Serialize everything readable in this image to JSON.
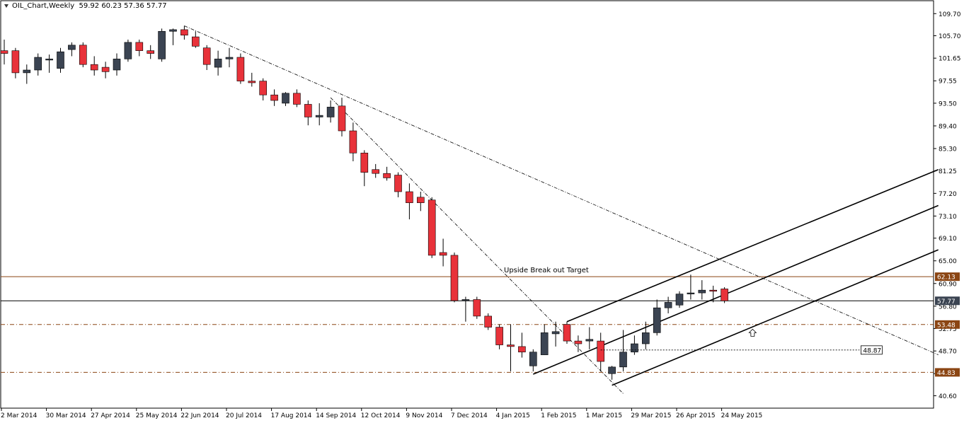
{
  "header": {
    "symbol": "OIL_Chart,Weekly",
    "ohlc": "59.92 60.23 57.36 57.77"
  },
  "colors": {
    "bull": "#3b4452",
    "bear": "#e8323a",
    "candle_outline": "#000000",
    "resistance": "#8b4513",
    "current_price_line": "#000000",
    "channel": "#000000",
    "trendline": "#000000",
    "current_badge_bg": "#3b4452",
    "level_badge_bg": "#8b4513",
    "badge_text": "#ffffff",
    "target_box_border": "#000000"
  },
  "chart_data": {
    "type": "candlestick",
    "instrument": "OIL",
    "timeframe": "Weekly",
    "y_axis": {
      "ylim": [
        39.0,
        110.5
      ],
      "tick_labels": [
        "109.70",
        "105.70",
        "101.65",
        "97.55",
        "93.50",
        "89.40",
        "85.30",
        "81.25",
        "77.20",
        "73.10",
        "69.10",
        "65.00",
        "60.90",
        "56.80",
        "52.75",
        "48.70",
        "44.60",
        "40.60"
      ]
    },
    "x_axis": {
      "tick_labels": [
        "2 Mar 2014",
        "30 Mar 2014",
        "27 Apr 2014",
        "25 May 2014",
        "22 Jun 2014",
        "20 Jul 2014",
        "17 Aug 2014",
        "14 Sep 2014",
        "12 Oct 2014",
        "9 Nov 2014",
        "7 Dec 2014",
        "4 Jan 2015",
        "1 Feb 2015",
        "1 Mar 2015",
        "29 Mar 2015",
        "26 Apr 2015",
        "24 May 2015"
      ],
      "tick_label_bar_index": [
        0,
        4,
        8,
        12,
        16,
        20,
        24,
        28,
        32,
        36,
        40,
        44,
        48,
        52,
        56,
        60,
        64
      ]
    },
    "candles": [
      {
        "o": 103.0,
        "h": 105.0,
        "l": 100.5,
        "c": 102.5
      },
      {
        "o": 103.0,
        "h": 103.5,
        "l": 98.0,
        "c": 99.0
      },
      {
        "o": 99.0,
        "h": 100.5,
        "l": 97.0,
        "c": 99.5
      },
      {
        "o": 99.5,
        "h": 102.5,
        "l": 98.5,
        "c": 101.8
      },
      {
        "o": 101.3,
        "h": 102.3,
        "l": 99.0,
        "c": 101.5
      },
      {
        "o": 99.8,
        "h": 103.5,
        "l": 99.0,
        "c": 102.8
      },
      {
        "o": 103.2,
        "h": 104.5,
        "l": 102.0,
        "c": 104.0
      },
      {
        "o": 104.0,
        "h": 104.5,
        "l": 100.0,
        "c": 100.5
      },
      {
        "o": 100.5,
        "h": 102.0,
        "l": 98.5,
        "c": 99.5
      },
      {
        "o": 100.0,
        "h": 101.0,
        "l": 98.0,
        "c": 99.2
      },
      {
        "o": 99.5,
        "h": 102.5,
        "l": 98.5,
        "c": 101.5
      },
      {
        "o": 101.5,
        "h": 105.0,
        "l": 101.0,
        "c": 104.5
      },
      {
        "o": 104.5,
        "h": 105.0,
        "l": 102.0,
        "c": 103.0
      },
      {
        "o": 103.0,
        "h": 104.0,
        "l": 101.5,
        "c": 102.5
      },
      {
        "o": 101.5,
        "h": 107.0,
        "l": 101.0,
        "c": 106.5
      },
      {
        "o": 106.5,
        "h": 107.0,
        "l": 104.0,
        "c": 106.8
      },
      {
        "o": 106.8,
        "h": 107.5,
        "l": 105.0,
        "c": 105.8
      },
      {
        "o": 105.5,
        "h": 106.5,
        "l": 103.5,
        "c": 103.8
      },
      {
        "o": 103.5,
        "h": 104.0,
        "l": 99.5,
        "c": 100.5
      },
      {
        "o": 100.0,
        "h": 103.0,
        "l": 98.5,
        "c": 101.5
      },
      {
        "o": 101.5,
        "h": 103.5,
        "l": 100.0,
        "c": 101.8
      },
      {
        "o": 101.8,
        "h": 102.5,
        "l": 97.0,
        "c": 97.5
      },
      {
        "o": 97.5,
        "h": 99.0,
        "l": 96.5,
        "c": 97.2
      },
      {
        "o": 97.5,
        "h": 98.0,
        "l": 94.0,
        "c": 95.0
      },
      {
        "o": 95.0,
        "h": 96.0,
        "l": 93.0,
        "c": 94.0
      },
      {
        "o": 93.5,
        "h": 95.5,
        "l": 93.0,
        "c": 95.3
      },
      {
        "o": 95.3,
        "h": 96.0,
        "l": 92.8,
        "c": 93.3
      },
      {
        "o": 93.3,
        "h": 94.0,
        "l": 89.5,
        "c": 91.0
      },
      {
        "o": 91.0,
        "h": 93.5,
        "l": 89.5,
        "c": 91.3
      },
      {
        "o": 91.0,
        "h": 94.0,
        "l": 90.0,
        "c": 92.8
      },
      {
        "o": 93.0,
        "h": 94.5,
        "l": 87.5,
        "c": 88.5
      },
      {
        "o": 88.5,
        "h": 90.0,
        "l": 83.0,
        "c": 84.5
      },
      {
        "o": 84.5,
        "h": 85.0,
        "l": 78.5,
        "c": 81.0
      },
      {
        "o": 81.5,
        "h": 82.5,
        "l": 80.0,
        "c": 80.8
      },
      {
        "o": 80.8,
        "h": 82.0,
        "l": 79.5,
        "c": 80.0
      },
      {
        "o": 80.5,
        "h": 81.0,
        "l": 76.5,
        "c": 77.5
      },
      {
        "o": 77.5,
        "h": 79.0,
        "l": 72.5,
        "c": 75.5
      },
      {
        "o": 76.5,
        "h": 77.5,
        "l": 74.0,
        "c": 75.5
      },
      {
        "o": 76.0,
        "h": 76.5,
        "l": 65.5,
        "c": 66.0
      },
      {
        "o": 66.5,
        "h": 69.0,
        "l": 64.0,
        "c": 66.0
      },
      {
        "o": 66.0,
        "h": 66.5,
        "l": 57.5,
        "c": 57.8
      },
      {
        "o": 57.8,
        "h": 58.5,
        "l": 54.0,
        "c": 58.0
      },
      {
        "o": 58.0,
        "h": 58.5,
        "l": 54.5,
        "c": 55.0
      },
      {
        "o": 55.0,
        "h": 55.5,
        "l": 52.5,
        "c": 53.0
      },
      {
        "o": 53.0,
        "h": 53.5,
        "l": 49.0,
        "c": 49.8
      },
      {
        "o": 49.8,
        "h": 53.5,
        "l": 45.0,
        "c": 49.5
      },
      {
        "o": 49.5,
        "h": 52.0,
        "l": 47.5,
        "c": 48.5
      },
      {
        "o": 46.0,
        "h": 49.0,
        "l": 45.0,
        "c": 48.5
      },
      {
        "o": 48.0,
        "h": 53.5,
        "l": 48.0,
        "c": 52.0
      },
      {
        "o": 51.8,
        "h": 54.0,
        "l": 49.5,
        "c": 52.2
      },
      {
        "o": 53.5,
        "h": 54.0,
        "l": 50.0,
        "c": 50.5
      },
      {
        "o": 50.5,
        "h": 51.5,
        "l": 48.5,
        "c": 50.0
      },
      {
        "o": 50.5,
        "h": 53.0,
        "l": 49.0,
        "c": 50.8
      },
      {
        "o": 50.5,
        "h": 52.0,
        "l": 45.0,
        "c": 46.8
      },
      {
        "o": 44.6,
        "h": 46.0,
        "l": 43.5,
        "c": 45.8
      },
      {
        "o": 45.8,
        "h": 52.5,
        "l": 45.0,
        "c": 48.5
      },
      {
        "o": 48.5,
        "h": 51.5,
        "l": 48.0,
        "c": 50.0
      },
      {
        "o": 50.0,
        "h": 54.0,
        "l": 49.0,
        "c": 52.0
      },
      {
        "o": 52.0,
        "h": 58.0,
        "l": 51.5,
        "c": 56.5
      },
      {
        "o": 56.5,
        "h": 58.5,
        "l": 55.5,
        "c": 57.5
      },
      {
        "o": 57.0,
        "h": 59.5,
        "l": 56.5,
        "c": 59.0
      },
      {
        "o": 59.0,
        "h": 62.5,
        "l": 58.0,
        "c": 59.2
      },
      {
        "o": 59.2,
        "h": 61.5,
        "l": 58.0,
        "c": 59.7
      },
      {
        "o": 59.7,
        "h": 60.5,
        "l": 57.5,
        "c": 59.5
      },
      {
        "o": 59.92,
        "h": 60.23,
        "l": 57.36,
        "c": 57.77
      }
    ],
    "levels": [
      {
        "price": 62.13,
        "label": "62.13",
        "style": "solid",
        "kind": "resistance"
      },
      {
        "price": 57.77,
        "label": "57.77",
        "style": "solid",
        "kind": "current"
      },
      {
        "price": 53.48,
        "label": "53.48",
        "style": "dashdot",
        "kind": "support"
      },
      {
        "price": 44.83,
        "label": "44.83",
        "style": "dashdot",
        "kind": "support"
      }
    ],
    "trendlines": [
      {
        "name": "long-term downtrend",
        "style": "dashdot",
        "from": {
          "bar": 16,
          "price": 107.5
        },
        "to": {
          "bar": 83,
          "price": 48.0
        }
      },
      {
        "name": "steep downtrend",
        "style": "dashdot",
        "from": {
          "bar": 29,
          "price": 94.5
        },
        "to": {
          "bar": 55,
          "price": 41.0
        }
      },
      {
        "name": "channel upper",
        "style": "solid",
        "from": {
          "bar": 50,
          "price": 54.0
        },
        "to": {
          "bar": 83,
          "price": 81.5
        }
      },
      {
        "name": "channel middle",
        "style": "solid",
        "from": {
          "bar": 47,
          "price": 44.5
        },
        "to": {
          "bar": 83,
          "price": 75.0
        }
      },
      {
        "name": "channel lower",
        "style": "solid",
        "from": {
          "bar": 54,
          "price": 42.5
        },
        "to": {
          "bar": 83,
          "price": 67.0
        }
      }
    ],
    "annotations": {
      "target_label": "Upside Break out Target",
      "target_price": "48.87",
      "target_line_from_bar": 53,
      "target_line_to_bar": 76
    }
  }
}
